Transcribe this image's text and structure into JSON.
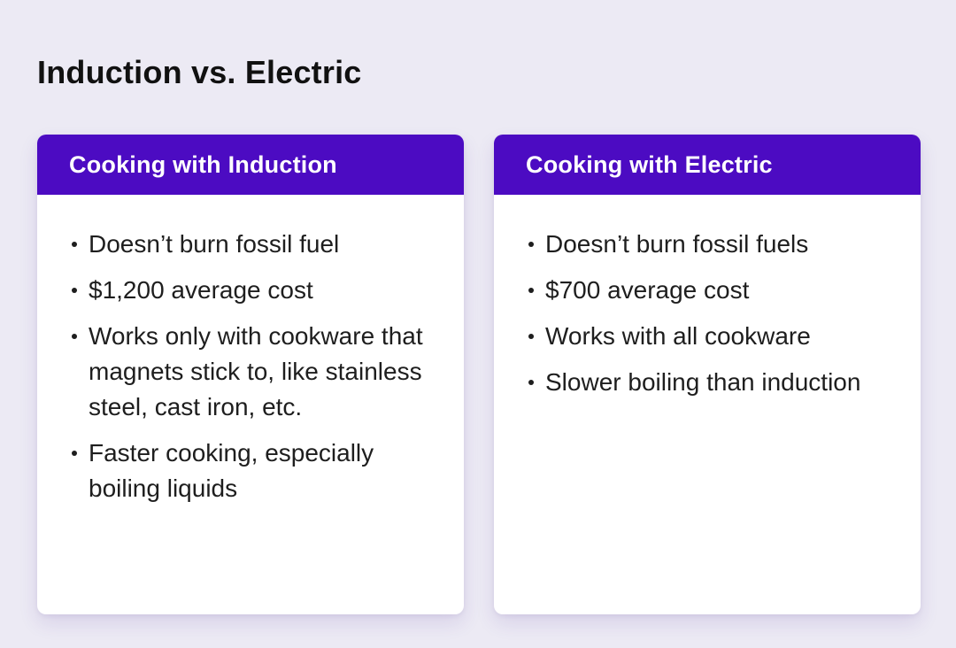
{
  "page": {
    "title": "Induction vs. Electric"
  },
  "colors": {
    "background": "#ECEAF4",
    "header_purple": "#4C0BC2",
    "card_background": "#FFFFFF",
    "body_text": "#1E1E1E",
    "title_text": "#111111",
    "header_text": "#FFFFFF"
  },
  "cards": [
    {
      "title": "Cooking with Induction",
      "bullets": [
        "Doesn’t burn fossil fuel",
        "$1,200 average cost",
        "Works only with cookware that magnets stick to, like stainless steel, cast iron, etc.",
        "Faster cooking, especially boiling liquids"
      ]
    },
    {
      "title": "Cooking with Electric",
      "bullets": [
        "Doesn’t burn fossil fuels",
        "$700 average cost",
        "Works with all cookware",
        "Slower boiling than induction"
      ]
    }
  ]
}
